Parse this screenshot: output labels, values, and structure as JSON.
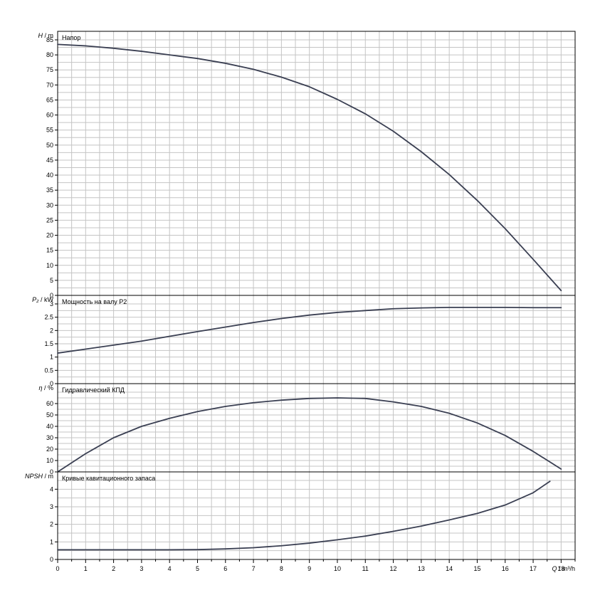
{
  "chart_data": [
    {
      "type": "line",
      "panel": "head",
      "title": "Напор",
      "ylabel": "H / m",
      "ylabel_parts": [
        "H",
        " / m"
      ],
      "ylim": [
        0,
        85
      ],
      "ytick_step": 5,
      "ytick_labels": [
        "0",
        "5",
        "10",
        "15",
        "20",
        "25",
        "30",
        "35",
        "40",
        "45",
        "50",
        "55",
        "60",
        "65",
        "70",
        "75",
        "80",
        "85"
      ],
      "series": [
        {
          "x": [
            0,
            1,
            2,
            3,
            4,
            5,
            6,
            7,
            8,
            9,
            10,
            11,
            12,
            13,
            14,
            15,
            16,
            17,
            18
          ],
          "y": [
            83.5,
            83,
            82.2,
            81.2,
            80,
            78.8,
            77.2,
            75.2,
            72.6,
            69.4,
            65.2,
            60.4,
            54.6,
            47.8,
            40.2,
            31.6,
            22.2,
            12,
            1.6
          ]
        }
      ]
    },
    {
      "type": "line",
      "panel": "power",
      "title": "Мощность на валу P2",
      "ylabel": "P₂ / kW",
      "ylabel_parts": [
        "P₂",
        " / kW"
      ],
      "ylim": [
        0,
        3
      ],
      "ytick_step": 0.5,
      "ytick_labels": [
        "0",
        "0.5",
        "1",
        "1.5",
        "2",
        "2.5",
        "3"
      ],
      "series": [
        {
          "x": [
            0,
            1,
            2,
            3,
            4,
            5,
            6,
            7,
            8,
            9,
            10,
            11,
            12,
            13,
            14,
            15,
            16,
            17,
            18
          ],
          "y": [
            1.15,
            1.3,
            1.45,
            1.6,
            1.78,
            1.96,
            2.13,
            2.3,
            2.45,
            2.58,
            2.68,
            2.75,
            2.82,
            2.85,
            2.87,
            2.87,
            2.87,
            2.86,
            2.86
          ]
        }
      ]
    },
    {
      "type": "line",
      "panel": "efficiency",
      "title": "Гидравлический КПД",
      "ylabel": "η / %",
      "ylabel_parts": [
        "η",
        " / %"
      ],
      "ylim": [
        0,
        70
      ],
      "ytick_step": 10,
      "ytick_labels": [
        "0",
        "10",
        "20",
        "30",
        "40",
        "50",
        "60"
      ],
      "series": [
        {
          "x": [
            0,
            1,
            2,
            3,
            4,
            5,
            6,
            7,
            8,
            9,
            10,
            11,
            12,
            13,
            14,
            15,
            16,
            17,
            18
          ],
          "y": [
            0,
            16,
            30,
            40,
            47,
            53,
            57.5,
            60.8,
            63,
            64.5,
            65,
            64.5,
            61.5,
            57.5,
            51.5,
            43,
            32,
            18,
            2.5
          ]
        }
      ]
    },
    {
      "type": "line",
      "panel": "npsh",
      "title": "Кривые кавитационного запаса",
      "ylabel": "NPSH / m",
      "ylabel_parts": [
        "NPSH",
        " / m"
      ],
      "ylim": [
        0,
        4.5
      ],
      "ytick_step": 1,
      "ytick_labels": [
        "0",
        "1",
        "2",
        "3",
        "4"
      ],
      "series": [
        {
          "x": [
            0,
            1,
            2,
            3,
            4,
            5,
            6,
            7,
            8,
            9,
            10,
            11,
            12,
            13,
            14,
            15,
            16,
            17,
            17.6
          ],
          "y": [
            0.55,
            0.55,
            0.55,
            0.55,
            0.55,
            0.56,
            0.6,
            0.67,
            0.78,
            0.93,
            1.12,
            1.33,
            1.6,
            1.9,
            2.25,
            2.62,
            3.1,
            3.8,
            4.45
          ]
        }
      ]
    }
  ],
  "x_axis": {
    "xlabel": "Q / m³/h",
    "xlabel_parts": [
      "Q",
      " / m³/h"
    ],
    "xlim": [
      0,
      18.5
    ],
    "tick_labels": [
      "0",
      "1",
      "2",
      "3",
      "4",
      "5",
      "6",
      "7",
      "8",
      "9",
      "10",
      "11",
      "12",
      "13",
      "14",
      "15",
      "16",
      "17",
      "18"
    ],
    "grid": true
  },
  "colors": {
    "curve": "#3a3f52",
    "grid": "#c4c4c4",
    "frame": "#000000"
  }
}
